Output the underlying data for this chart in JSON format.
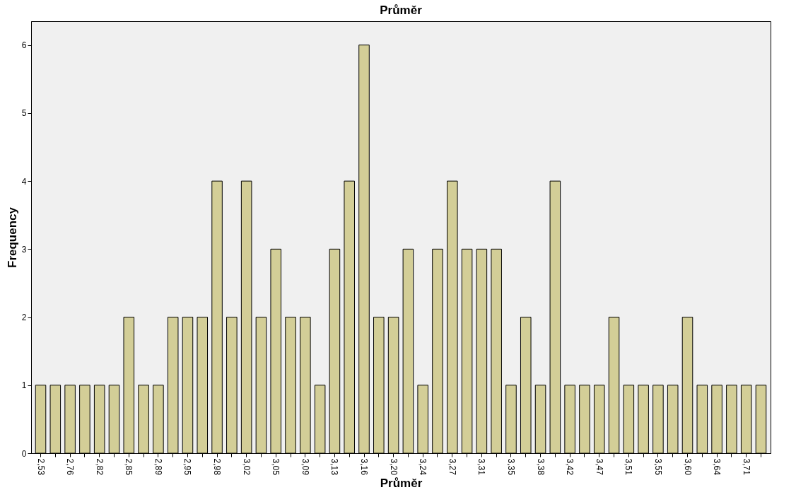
{
  "chart_data": {
    "type": "bar",
    "title": "Průměr",
    "xlabel": "Průměr",
    "ylabel": "Frequency",
    "categories": [
      "2,53",
      null,
      "2,76",
      null,
      "2,82",
      null,
      "2,85",
      null,
      "2,89",
      null,
      "2,95",
      null,
      "2,98",
      null,
      "3,02",
      null,
      "3,05",
      null,
      "3,09",
      null,
      "3,13",
      null,
      "3,16",
      null,
      "3,20",
      null,
      "3,24",
      null,
      "3,27",
      null,
      "3,31",
      null,
      "3,35",
      null,
      "3,38",
      null,
      "3,42",
      null,
      "3,47",
      null,
      "3,51",
      null,
      "3,55",
      null,
      "3,60",
      null,
      "3,64",
      null,
      "3,71",
      null
    ],
    "values": [
      1,
      1,
      1,
      1,
      1,
      1,
      2,
      1,
      1,
      2,
      2,
      2,
      4,
      2,
      4,
      2,
      3,
      2,
      2,
      1,
      3,
      4,
      6,
      2,
      2,
      3,
      1,
      3,
      4,
      3,
      3,
      3,
      1,
      2,
      1,
      4,
      1,
      1,
      1,
      2,
      1,
      1,
      1,
      1,
      2,
      1,
      1,
      1,
      1,
      1
    ],
    "color": "#d3ce97",
    "ylim": [
      0,
      6.35
    ],
    "yticks": [
      0,
      1,
      2,
      3,
      4,
      5,
      6
    ],
    "grid": false
  }
}
